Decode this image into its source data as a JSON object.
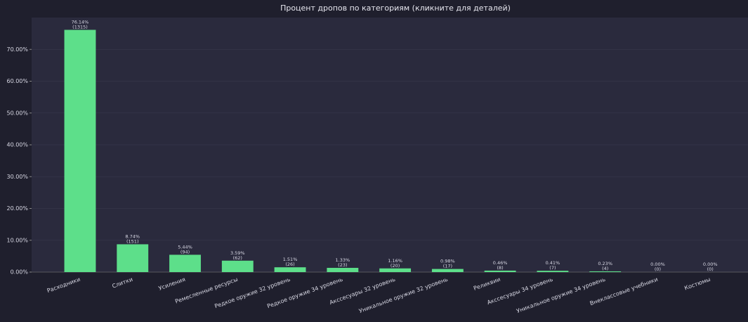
{
  "chart_data": {
    "type": "bar",
    "title": "Процент дропов по категориям  (кликните для деталей)",
    "categories": [
      "Расходники",
      "Слитки",
      "Усиления",
      "Ремесленные ресурсы",
      "Редкое оружие 32 уровень",
      "Редкое оружие 34 уровень",
      "Акссесуары 32 уровень",
      "Уникальное оружие 32 уровень",
      "Реликвии",
      "Акссесуары 34 уровень",
      "Уникальное оружие 34 уровень",
      "Внеклассовые учебники",
      "Костюмы"
    ],
    "values": [
      76.14,
      8.74,
      5.44,
      3.59,
      1.51,
      1.33,
      1.16,
      0.98,
      0.46,
      0.41,
      0.23,
      0,
      0
    ],
    "value_labels": [
      "76.14%",
      "8.74%",
      "5.44%",
      "3.59%",
      "1.51%",
      "1.33%",
      "1.16%",
      "0.98%",
      "0.46%",
      "0.41%",
      "0.23%",
      "0.00%",
      "0.00%"
    ],
    "count_labels": [
      "(1315)",
      "(151)",
      "(94)",
      "(62)",
      "(26)",
      "(23)",
      "(20)",
      "(17)",
      "(8)",
      "(7)",
      "(4)",
      "(0)",
      "(0)"
    ],
    "color": "#5ddf8a",
    "ylim": [
      0,
      80
    ],
    "yticks": [
      {
        "value": 0,
        "label": "0.00%"
      },
      {
        "value": 10,
        "label": "10.00%"
      },
      {
        "value": 20,
        "label": "20.00%"
      },
      {
        "value": 30,
        "label": "30.00%"
      },
      {
        "value": 40,
        "label": "40.00%"
      },
      {
        "value": 50,
        "label": "50.00%"
      },
      {
        "value": 60,
        "label": "60.00%"
      },
      {
        "value": 70,
        "label": "70.00%"
      }
    ],
    "grid": true
  }
}
